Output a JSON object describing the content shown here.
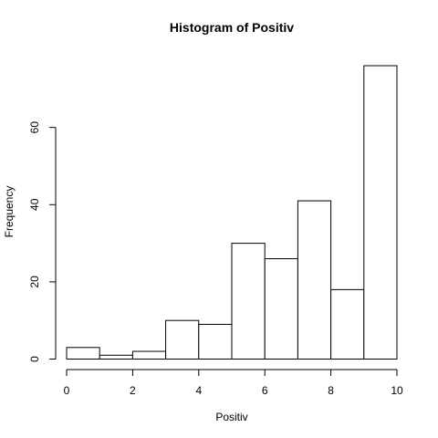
{
  "chart_data": {
    "type": "bar",
    "title": "Histogram of Positiv",
    "xlabel": "Positiv",
    "ylabel": "Frequency",
    "bins": [
      {
        "from": 0,
        "to": 1,
        "count": 3
      },
      {
        "from": 1,
        "to": 2,
        "count": 1
      },
      {
        "from": 2,
        "to": 3,
        "count": 2
      },
      {
        "from": 3,
        "to": 4,
        "count": 10
      },
      {
        "from": 4,
        "to": 5,
        "count": 9
      },
      {
        "from": 5,
        "to": 6,
        "count": 30
      },
      {
        "from": 6,
        "to": 7,
        "count": 26
      },
      {
        "from": 7,
        "to": 8,
        "count": 41
      },
      {
        "from": 8,
        "to": 9,
        "count": 18
      },
      {
        "from": 9,
        "to": 10,
        "count": 76
      }
    ],
    "xlim": [
      0,
      10
    ],
    "ylim": [
      0,
      76
    ],
    "x_ticks": [
      0,
      2,
      4,
      6,
      8,
      10
    ],
    "y_ticks": [
      0,
      20,
      40,
      60
    ],
    "grid": false,
    "bar_fill": "#ffffff",
    "bar_stroke": "#000000"
  }
}
